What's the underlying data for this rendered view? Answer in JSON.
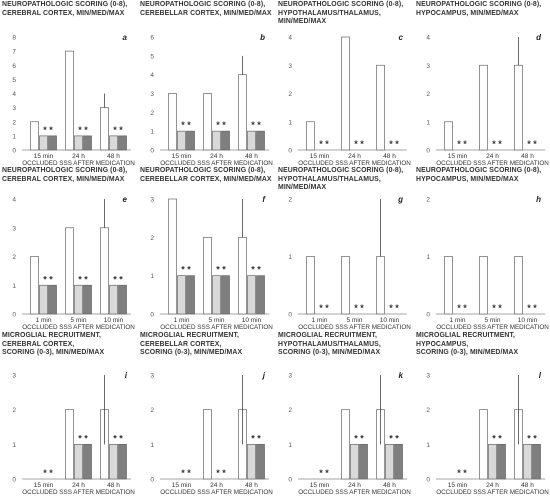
{
  "chart_data": [
    {
      "type": "bar",
      "panel_letter": "a",
      "title": "NEUROPATHOLOGIC SCORING (0-8),\nCEREBRAL CORTEX, MIN/MED/MAX",
      "xlabel": "OCCLUDED SSS AFTER MEDICATION",
      "categories": [
        "15 min",
        "24 h",
        "48 h"
      ],
      "series": [
        {
          "values": [
            2,
            7,
            3
          ],
          "err_low": [
            0,
            0,
            0
          ],
          "err_high": [
            0,
            0,
            1
          ],
          "fill": "#ffffff"
        },
        {
          "values": [
            1,
            1,
            1
          ],
          "err_low": [
            0,
            0,
            0
          ],
          "err_high": [
            0,
            0,
            0
          ],
          "fill": "#d9d9d9"
        },
        {
          "values": [
            1,
            1,
            1
          ],
          "err_low": [
            0,
            0,
            0
          ],
          "err_high": [
            0,
            0,
            0
          ],
          "fill": "#7f7f7f"
        }
      ],
      "stars": [
        "* *",
        "* *",
        "* *"
      ],
      "ylim": [
        0,
        8
      ],
      "yticks": [
        "0",
        "1",
        "2",
        "3",
        "4",
        "5",
        "6",
        "7",
        "8"
      ]
    },
    {
      "type": "bar",
      "panel_letter": "b",
      "title": "NEUROPATHOLOGIC SCORING (0-8),\nCEREBELLAR CORTEX, MIN/MED/MAX",
      "xlabel": "OCCLUDED SSS AFTER MEDICATION",
      "categories": [
        "15 min",
        "24 h",
        "48 h"
      ],
      "series": [
        {
          "values": [
            3,
            3,
            4
          ],
          "err_low": [
            0,
            0,
            0
          ],
          "err_high": [
            0,
            0,
            1
          ],
          "fill": "#ffffff"
        },
        {
          "values": [
            1,
            1,
            1
          ],
          "err_low": [
            0,
            0,
            0
          ],
          "err_high": [
            0,
            0,
            0
          ],
          "fill": "#d9d9d9"
        },
        {
          "values": [
            1,
            1,
            1
          ],
          "err_low": [
            0,
            0,
            0
          ],
          "err_high": [
            0,
            0,
            0
          ],
          "fill": "#7f7f7f"
        }
      ],
      "stars": [
        "* *",
        "* *",
        "* *"
      ],
      "ylim": [
        0,
        6
      ],
      "yticks": [
        "0",
        "1",
        "2",
        "3",
        "4",
        "5",
        "6"
      ]
    },
    {
      "type": "bar",
      "panel_letter": "c",
      "title": "NEUROPATHOLOGIC SCORING (0-8),\nHYPOTHALAMUS/THALAMUS,\nMIN/MED/MAX",
      "xlabel": "OCCLUDED SSS AFTER MEDICATION",
      "categories": [
        "15 min",
        "24 h",
        "48 h"
      ],
      "series": [
        {
          "values": [
            1,
            4,
            3
          ],
          "err_low": [
            0,
            0,
            0
          ],
          "err_high": [
            0,
            0,
            0
          ],
          "fill": "#ffffff"
        },
        {
          "values": [
            0,
            0,
            0
          ],
          "err_low": [
            0,
            0,
            0
          ],
          "err_high": [
            0,
            0,
            0
          ],
          "fill": "#d9d9d9"
        },
        {
          "values": [
            0,
            0,
            0
          ],
          "err_low": [
            0,
            0,
            0
          ],
          "err_high": [
            0,
            0,
            0
          ],
          "fill": "#7f7f7f"
        }
      ],
      "stars": [
        "* *",
        "* *",
        "* *"
      ],
      "ylim": [
        0,
        4
      ],
      "yticks": [
        "0",
        "1",
        "2",
        "3",
        "4"
      ]
    },
    {
      "type": "bar",
      "panel_letter": "d",
      "title": "NEUROPATHOLOGIC SCORING (0-8),\nHYPOCAMPUS, MIN/MED/MAX",
      "xlabel": "OCCLUDED SSS AFTER MEDICATION",
      "categories": [
        "15 min",
        "24 h",
        "48 h"
      ],
      "series": [
        {
          "values": [
            1,
            3,
            3
          ],
          "err_low": [
            0,
            0,
            0
          ],
          "err_high": [
            0,
            0,
            1
          ],
          "fill": "#ffffff"
        },
        {
          "values": [
            0,
            0,
            0
          ],
          "err_low": [
            0,
            0,
            0
          ],
          "err_high": [
            0,
            0,
            0
          ],
          "fill": "#d9d9d9"
        },
        {
          "values": [
            0,
            0,
            0
          ],
          "err_low": [
            0,
            0,
            0
          ],
          "err_high": [
            0,
            0,
            0
          ],
          "fill": "#7f7f7f"
        }
      ],
      "stars": [
        "* *",
        "* *",
        "* *"
      ],
      "ylim": [
        0,
        4
      ],
      "yticks": [
        "0",
        "1",
        "2",
        "3",
        "4"
      ]
    },
    {
      "type": "bar",
      "panel_letter": "e",
      "title": "NEUROPATHOLOGIC SCORING (0-8),\nCEREBRAL CORTEX, MIN/MED/MAX",
      "xlabel": "OCCLUDED SSS AFTER MEDICATION",
      "categories": [
        "1 min",
        "5 min",
        "10 min"
      ],
      "series": [
        {
          "values": [
            2,
            3,
            3
          ],
          "err_low": [
            0,
            0,
            0
          ],
          "err_high": [
            0,
            0,
            1
          ],
          "fill": "#ffffff"
        },
        {
          "values": [
            1,
            1,
            1
          ],
          "err_low": [
            0,
            0,
            0
          ],
          "err_high": [
            0,
            0,
            0
          ],
          "fill": "#d9d9d9"
        },
        {
          "values": [
            1,
            1,
            1
          ],
          "err_low": [
            0,
            0,
            0
          ],
          "err_high": [
            0,
            0,
            0
          ],
          "fill": "#7f7f7f"
        }
      ],
      "stars": [
        "* *",
        "* *",
        "* *"
      ],
      "ylim": [
        0,
        4
      ],
      "yticks": [
        "0",
        "1",
        "2",
        "3",
        "4"
      ]
    },
    {
      "type": "bar",
      "panel_letter": "f",
      "title": "NEUROPATHOLOGIC SCORING (0-8),\nCEREBELLAR CORTEX, MIN/MED/MAX",
      "xlabel": "OCCLUDED SSS AFTER MEDICATION",
      "categories": [
        "1 min",
        "5 min",
        "10 min"
      ],
      "series": [
        {
          "values": [
            3,
            2,
            2
          ],
          "err_low": [
            0,
            0,
            0
          ],
          "err_high": [
            0,
            0,
            1
          ],
          "fill": "#ffffff"
        },
        {
          "values": [
            1,
            1,
            1
          ],
          "err_low": [
            0,
            0,
            0
          ],
          "err_high": [
            0,
            0,
            0
          ],
          "fill": "#d9d9d9"
        },
        {
          "values": [
            1,
            1,
            1
          ],
          "err_low": [
            0,
            0,
            0
          ],
          "err_high": [
            0,
            0,
            0
          ],
          "fill": "#7f7f7f"
        }
      ],
      "stars": [
        "* *",
        "* *",
        "* *"
      ],
      "ylim": [
        0,
        3
      ],
      "yticks": [
        "0",
        "1",
        "2",
        "3"
      ]
    },
    {
      "type": "bar",
      "panel_letter": "g",
      "title": "NEUROPATHOLOGIC SCORING (0-8),\nHYPOTHALAMUS/THALAMUS,\nMIN/MED/MAX",
      "xlabel": "OCCLUDED SSS AFTER MEDICATION",
      "categories": [
        "1 min",
        "5 min",
        "10 min"
      ],
      "series": [
        {
          "values": [
            1,
            1,
            1
          ],
          "err_low": [
            0,
            0,
            0
          ],
          "err_high": [
            0,
            0,
            1
          ],
          "fill": "#ffffff"
        },
        {
          "values": [
            0,
            0,
            0
          ],
          "err_low": [
            0,
            0,
            0
          ],
          "err_high": [
            0,
            0,
            0
          ],
          "fill": "#d9d9d9"
        },
        {
          "values": [
            0,
            0,
            0
          ],
          "err_low": [
            0,
            0,
            0
          ],
          "err_high": [
            0,
            0,
            0
          ],
          "fill": "#7f7f7f"
        }
      ],
      "stars": [
        "* *",
        "* *",
        "* *"
      ],
      "ylim": [
        0,
        2
      ],
      "yticks": [
        "0",
        "1",
        "2"
      ]
    },
    {
      "type": "bar",
      "panel_letter": "h",
      "title": "NEUROPATHOLOGIC SCORING (0-8),\nHYPOCAMPUS, MIN/MED/MAX",
      "xlabel": "OCCLUDED SSS AFTER MEDICATION",
      "categories": [
        "1 min",
        "5 min",
        "10 min"
      ],
      "series": [
        {
          "values": [
            1,
            1,
            1
          ],
          "err_low": [
            0,
            0,
            0
          ],
          "err_high": [
            0,
            0,
            0
          ],
          "fill": "#ffffff"
        },
        {
          "values": [
            0,
            0,
            0
          ],
          "err_low": [
            0,
            0,
            0
          ],
          "err_high": [
            0,
            0,
            0
          ],
          "fill": "#d9d9d9"
        },
        {
          "values": [
            0,
            0,
            0
          ],
          "err_low": [
            0,
            0,
            0
          ],
          "err_high": [
            0,
            0,
            0
          ],
          "fill": "#7f7f7f"
        }
      ],
      "stars": [
        "* *",
        "* *",
        "* *"
      ],
      "ylim": [
        0,
        2
      ],
      "yticks": [
        "0",
        "1",
        "2"
      ]
    },
    {
      "type": "bar",
      "panel_letter": "i",
      "title": "MICROGLIAL RECRUITMENT,\nCEREBRAL CORTEX,\nSCORING (0-3), MIN/MED/MAX",
      "xlabel": "OCCLUDED SSS AFTER MEDICATION",
      "categories": [
        "15 min",
        "24 h",
        "48 h"
      ],
      "series": [
        {
          "values": [
            0,
            2,
            2
          ],
          "err_low": [
            0,
            0,
            1
          ],
          "err_high": [
            0,
            0,
            1
          ],
          "fill": "#ffffff"
        },
        {
          "values": [
            0,
            1,
            1
          ],
          "err_low": [
            0,
            0,
            0
          ],
          "err_high": [
            0,
            0,
            0
          ],
          "fill": "#d9d9d9"
        },
        {
          "values": [
            0,
            1,
            1
          ],
          "err_low": [
            0,
            0,
            0
          ],
          "err_high": [
            0,
            0,
            0
          ],
          "fill": "#7f7f7f"
        }
      ],
      "stars": [
        "* *",
        "* *",
        "* *"
      ],
      "ylim": [
        0,
        3
      ],
      "yticks": [
        "0",
        "1",
        "2",
        "3"
      ]
    },
    {
      "type": "bar",
      "panel_letter": "j",
      "title": "MICROGLIAL RECRUITMENT,\nCEREBELLAR CORTEX,\nSCORING (0-3), MIN/MED/MAX",
      "xlabel": "OCCLUDED SSS AFTER MEDICATION",
      "categories": [
        "15 min",
        "24 h",
        "48 h"
      ],
      "series": [
        {
          "values": [
            0,
            2,
            2
          ],
          "err_low": [
            0,
            0,
            1
          ],
          "err_high": [
            0,
            0,
            1
          ],
          "fill": "#ffffff"
        },
        {
          "values": [
            0,
            0,
            1
          ],
          "err_low": [
            0,
            0,
            0
          ],
          "err_high": [
            0,
            0,
            0
          ],
          "fill": "#d9d9d9"
        },
        {
          "values": [
            0,
            0,
            1
          ],
          "err_low": [
            0,
            0,
            0
          ],
          "err_high": [
            0,
            0,
            0
          ],
          "fill": "#7f7f7f"
        }
      ],
      "stars": [
        "* *",
        "* *",
        "* *"
      ],
      "ylim": [
        0,
        3
      ],
      "yticks": [
        "0",
        "1",
        "2",
        "3"
      ]
    },
    {
      "type": "bar",
      "panel_letter": "k",
      "title": "MICROGLIAL RECRUITMENT,\nHYPOTHALAMUS/THALAMUS,\nSCORING (0-3), MIN/MED/MAX",
      "xlabel": "OCCLUDED SSS AFTER MEDICATION",
      "categories": [
        "15 min",
        "24 h",
        "48 h"
      ],
      "series": [
        {
          "values": [
            0,
            2,
            2
          ],
          "err_low": [
            0,
            0,
            1
          ],
          "err_high": [
            0,
            0,
            1
          ],
          "fill": "#ffffff"
        },
        {
          "values": [
            0,
            1,
            1
          ],
          "err_low": [
            0,
            0,
            0
          ],
          "err_high": [
            0,
            0,
            0
          ],
          "fill": "#d9d9d9"
        },
        {
          "values": [
            0,
            1,
            1
          ],
          "err_low": [
            0,
            0,
            0
          ],
          "err_high": [
            0,
            0,
            0
          ],
          "fill": "#7f7f7f"
        }
      ],
      "stars": [
        "* *",
        "* *",
        "* *"
      ],
      "ylim": [
        0,
        3
      ],
      "yticks": [
        "0",
        "1",
        "2",
        "3"
      ]
    },
    {
      "type": "bar",
      "panel_letter": "l",
      "title": "MICROGLIAL RECRUITMENT,\nHYPOCAMPUS,\nSCORING (0-3), MIN/MED/MAX",
      "xlabel": "OCCLUDED SSS AFTER MEDICATION",
      "categories": [
        "15 min",
        "24 h",
        "48 h"
      ],
      "series": [
        {
          "values": [
            0,
            2,
            2
          ],
          "err_low": [
            0,
            0,
            1
          ],
          "err_high": [
            0,
            0,
            1
          ],
          "fill": "#ffffff"
        },
        {
          "values": [
            0,
            1,
            1
          ],
          "err_low": [
            0,
            0,
            0
          ],
          "err_high": [
            0,
            0,
            0
          ],
          "fill": "#d9d9d9"
        },
        {
          "values": [
            0,
            1,
            1
          ],
          "err_low": [
            0,
            0,
            0
          ],
          "err_high": [
            0,
            0,
            0
          ],
          "fill": "#7f7f7f"
        }
      ],
      "stars": [
        "* *",
        "* *",
        "* *"
      ],
      "ylim": [
        0,
        3
      ],
      "yticks": [
        "0",
        "1",
        "2",
        "3"
      ]
    }
  ]
}
